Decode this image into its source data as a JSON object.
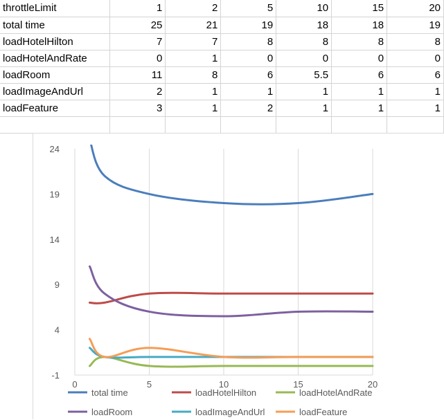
{
  "table": {
    "header": {
      "label": "throttleLimit",
      "values": [
        "1",
        "2",
        "5",
        "10",
        "15",
        "20"
      ]
    },
    "rows": [
      {
        "label": "total time",
        "values": [
          "25",
          "21",
          "19",
          "18",
          "18",
          "19"
        ]
      },
      {
        "label": "loadHotelHilton",
        "values": [
          "7",
          "7",
          "8",
          "8",
          "8",
          "8"
        ]
      },
      {
        "label": "loadHotelAndRate",
        "values": [
          "0",
          "1",
          "0",
          "0",
          "0",
          "0"
        ]
      },
      {
        "label": "loadRoom",
        "values": [
          "11",
          "8",
          "6",
          "5.5",
          "6",
          "6"
        ]
      },
      {
        "label": "loadImageAndUrl",
        "values": [
          "2",
          "1",
          "1",
          "1",
          "1",
          "1"
        ]
      },
      {
        "label": "loadFeature",
        "values": [
          "3",
          "1",
          "2",
          "1",
          "1",
          "1"
        ]
      }
    ]
  },
  "chart_data": {
    "type": "line",
    "smooth": true,
    "x": [
      1,
      2,
      5,
      10,
      15,
      20
    ],
    "xlim": [
      0,
      20
    ],
    "ylim": [
      -1,
      24
    ],
    "xticks": [
      "0",
      "5",
      "10",
      "15",
      "20"
    ],
    "yticks": [
      "-1",
      "4",
      "9",
      "14",
      "19",
      "24"
    ],
    "grid": "vertical",
    "legend": "bottom",
    "series": [
      {
        "name": "total time",
        "color": "#4a7ebb",
        "values": [
          25,
          21,
          19,
          18,
          18,
          19
        ]
      },
      {
        "name": "loadHotelHilton",
        "color": "#be4b48",
        "values": [
          7,
          7,
          8,
          8,
          8,
          8
        ]
      },
      {
        "name": "loadHotelAndRate",
        "color": "#98b954",
        "values": [
          0,
          1,
          0,
          0,
          0,
          0
        ]
      },
      {
        "name": "loadRoom",
        "color": "#7d60a0",
        "values": [
          11,
          8,
          6,
          5.5,
          6,
          6
        ]
      },
      {
        "name": "loadImageAndUrl",
        "color": "#46aac5",
        "values": [
          2,
          1,
          1,
          1,
          1,
          1
        ]
      },
      {
        "name": "loadFeature",
        "color": "#f59d56",
        "values": [
          3,
          1,
          2,
          1,
          1,
          1
        ]
      }
    ]
  }
}
